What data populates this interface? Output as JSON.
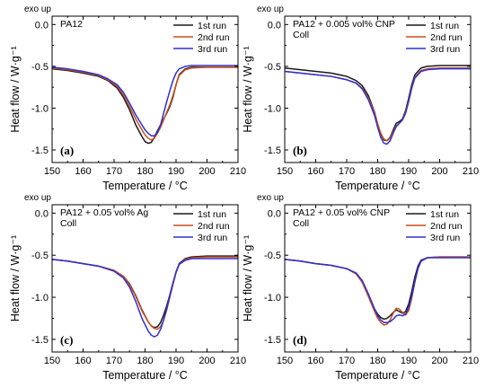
{
  "chart_data": [
    {
      "type": "line",
      "panel_label": "(a)",
      "sample": [
        "PA12"
      ],
      "corner_label": "exo up",
      "xlabel": "Temperature / °C",
      "ylabel": "Heat flow / W·g⁻¹",
      "xlim": [
        150,
        210
      ],
      "ylim": [
        -1.65,
        0.1
      ],
      "x_ticks": [
        150,
        160,
        170,
        180,
        190,
        200,
        210
      ],
      "y_ticks": [
        0.0,
        -0.5,
        -1.0,
        -1.5
      ],
      "x_tick_labels": [
        "150",
        "160",
        "170",
        "180",
        "190",
        "200",
        "210"
      ],
      "y_tick_labels": [
        "0.0",
        "-0.5",
        "-1.0",
        "-1.5"
      ],
      "legend": "top-right",
      "grid": false,
      "series": [
        {
          "name": "1st run",
          "color": "#1a1a1a",
          "x": [
            150,
            155,
            160,
            165,
            168,
            171,
            173,
            175,
            177,
            179,
            180,
            181,
            182,
            183,
            184,
            185,
            186,
            187,
            188,
            189,
            190,
            191,
            193,
            195,
            200,
            205,
            210
          ],
          "y": [
            -0.53,
            -0.55,
            -0.58,
            -0.62,
            -0.67,
            -0.76,
            -0.87,
            -1.02,
            -1.2,
            -1.34,
            -1.4,
            -1.42,
            -1.41,
            -1.35,
            -1.27,
            -1.2,
            -1.13,
            -1.06,
            -0.98,
            -0.87,
            -0.72,
            -0.6,
            -0.53,
            -0.51,
            -0.51,
            -0.51,
            -0.51
          ]
        },
        {
          "name": "2nd run",
          "color": "#c8501e",
          "x": [
            150,
            155,
            160,
            165,
            168,
            171,
            173,
            175,
            177,
            179,
            180,
            181,
            182,
            183,
            184,
            185,
            186,
            187,
            188,
            189,
            190,
            191,
            193,
            195,
            200,
            205,
            210
          ],
          "y": [
            -0.52,
            -0.54,
            -0.57,
            -0.61,
            -0.66,
            -0.74,
            -0.84,
            -0.98,
            -1.13,
            -1.26,
            -1.32,
            -1.36,
            -1.38,
            -1.36,
            -1.3,
            -1.23,
            -1.14,
            -1.05,
            -0.96,
            -0.85,
            -0.72,
            -0.61,
            -0.54,
            -0.52,
            -0.51,
            -0.51,
            -0.51
          ]
        },
        {
          "name": "3rd run",
          "color": "#3030d0",
          "x": [
            150,
            155,
            160,
            165,
            168,
            171,
            173,
            175,
            177,
            179,
            180,
            181,
            182,
            183,
            184,
            185,
            186,
            187,
            188,
            189,
            190,
            191,
            193,
            195,
            200,
            205,
            210
          ],
          "y": [
            -0.51,
            -0.53,
            -0.56,
            -0.6,
            -0.65,
            -0.72,
            -0.81,
            -0.94,
            -1.08,
            -1.2,
            -1.26,
            -1.3,
            -1.33,
            -1.33,
            -1.29,
            -1.2,
            -1.06,
            -0.92,
            -0.79,
            -0.67,
            -0.58,
            -0.53,
            -0.5,
            -0.49,
            -0.49,
            -0.49,
            -0.49
          ]
        }
      ]
    },
    {
      "type": "line",
      "panel_label": "(b)",
      "sample": [
        "PA12 + 0.005 vol% CNP",
        "Coll"
      ],
      "corner_label": "exo up",
      "xlabel": "Temperature / °C",
      "ylabel": "Heat flow / W·g⁻¹",
      "xlim": [
        150,
        210
      ],
      "ylim": [
        -1.65,
        0.1
      ],
      "x_ticks": [
        150,
        160,
        170,
        180,
        190,
        200,
        210
      ],
      "y_ticks": [
        0.0,
        -0.5,
        -1.0,
        -1.5
      ],
      "x_tick_labels": [
        "150",
        "160",
        "170",
        "180",
        "190",
        "200",
        "210"
      ],
      "y_tick_labels": [
        "0.0",
        "-0.5",
        "-1.0",
        "-1.5"
      ],
      "legend": "top-right",
      "grid": false,
      "series": [
        {
          "name": "1st run",
          "color": "#1a1a1a",
          "x": [
            150,
            155,
            160,
            165,
            170,
            173,
            175,
            177,
            179,
            180,
            181,
            182,
            183,
            184,
            185,
            186,
            187,
            188,
            189,
            190,
            191,
            192,
            194,
            196,
            200,
            205,
            210
          ],
          "y": [
            -0.52,
            -0.54,
            -0.56,
            -0.58,
            -0.62,
            -0.67,
            -0.73,
            -0.85,
            -1.05,
            -1.19,
            -1.31,
            -1.38,
            -1.39,
            -1.35,
            -1.26,
            -1.18,
            -1.16,
            -1.13,
            -1.03,
            -0.88,
            -0.72,
            -0.6,
            -0.52,
            -0.5,
            -0.49,
            -0.49,
            -0.49
          ]
        },
        {
          "name": "2nd run",
          "color": "#c8501e",
          "x": [
            150,
            155,
            160,
            165,
            170,
            173,
            175,
            177,
            179,
            180,
            181,
            182,
            183,
            184,
            185,
            186,
            187,
            188,
            189,
            190,
            191,
            192,
            194,
            196,
            200,
            205,
            210
          ],
          "y": [
            -0.56,
            -0.58,
            -0.6,
            -0.62,
            -0.66,
            -0.7,
            -0.76,
            -0.88,
            -1.06,
            -1.19,
            -1.3,
            -1.37,
            -1.39,
            -1.36,
            -1.28,
            -1.21,
            -1.18,
            -1.14,
            -1.05,
            -0.91,
            -0.75,
            -0.63,
            -0.55,
            -0.53,
            -0.52,
            -0.52,
            -0.52
          ]
        },
        {
          "name": "3rd run",
          "color": "#3030d0",
          "x": [
            150,
            155,
            160,
            165,
            170,
            173,
            175,
            177,
            179,
            180,
            181,
            182,
            183,
            184,
            185,
            186,
            187,
            188,
            189,
            190,
            191,
            192,
            194,
            196,
            200,
            205,
            210
          ],
          "y": [
            -0.56,
            -0.58,
            -0.6,
            -0.62,
            -0.66,
            -0.7,
            -0.77,
            -0.9,
            -1.09,
            -1.23,
            -1.35,
            -1.42,
            -1.43,
            -1.39,
            -1.3,
            -1.22,
            -1.18,
            -1.14,
            -1.06,
            -0.92,
            -0.76,
            -0.64,
            -0.56,
            -0.54,
            -0.53,
            -0.53,
            -0.53
          ]
        }
      ]
    },
    {
      "type": "line",
      "panel_label": "(c)",
      "sample": [
        "PA12 + 0.05 vol% Ag",
        "Coll"
      ],
      "corner_label": "exo up",
      "xlabel": "Temperature / °C",
      "ylabel": "Heat flow / W·g⁻¹",
      "xlim": [
        150,
        210
      ],
      "ylim": [
        -1.65,
        0.1
      ],
      "x_ticks": [
        150,
        160,
        170,
        180,
        190,
        200,
        210
      ],
      "y_ticks": [
        0.0,
        -0.5,
        -1.0,
        -1.5
      ],
      "x_tick_labels": [
        "150",
        "160",
        "170",
        "180",
        "190",
        "200",
        "210"
      ],
      "y_tick_labels": [
        "0.0",
        "-0.5",
        "-1.0",
        "-1.5"
      ],
      "legend": "top-right",
      "grid": false,
      "series": [
        {
          "name": "1st run",
          "color": "#1a1a1a",
          "x": [
            150,
            155,
            160,
            165,
            170,
            173,
            175,
            177,
            179,
            181,
            182,
            183,
            184,
            185,
            186,
            187,
            188,
            189,
            190,
            191,
            193,
            195,
            200,
            205,
            210
          ],
          "y": [
            -0.55,
            -0.57,
            -0.6,
            -0.63,
            -0.68,
            -0.75,
            -0.84,
            -0.98,
            -1.15,
            -1.29,
            -1.34,
            -1.36,
            -1.35,
            -1.3,
            -1.21,
            -1.1,
            -0.97,
            -0.83,
            -0.7,
            -0.6,
            -0.54,
            -0.52,
            -0.51,
            -0.51,
            -0.51
          ]
        },
        {
          "name": "2nd run",
          "color": "#c8501e",
          "x": [
            150,
            155,
            160,
            165,
            170,
            173,
            175,
            177,
            179,
            181,
            182,
            183,
            184,
            185,
            186,
            187,
            188,
            189,
            190,
            191,
            193,
            195,
            200,
            205,
            210
          ],
          "y": [
            -0.55,
            -0.57,
            -0.6,
            -0.63,
            -0.68,
            -0.75,
            -0.85,
            -0.99,
            -1.16,
            -1.29,
            -1.34,
            -1.37,
            -1.38,
            -1.35,
            -1.27,
            -1.15,
            -1.0,
            -0.85,
            -0.71,
            -0.61,
            -0.55,
            -0.53,
            -0.52,
            -0.52,
            -0.52
          ]
        },
        {
          "name": "3rd run",
          "color": "#3030d0",
          "x": [
            150,
            155,
            160,
            165,
            170,
            173,
            175,
            177,
            179,
            181,
            182,
            183,
            184,
            185,
            186,
            187,
            188,
            189,
            190,
            191,
            193,
            195,
            200,
            205,
            210
          ],
          "y": [
            -0.55,
            -0.57,
            -0.6,
            -0.63,
            -0.69,
            -0.77,
            -0.88,
            -1.05,
            -1.25,
            -1.4,
            -1.45,
            -1.47,
            -1.45,
            -1.38,
            -1.27,
            -1.13,
            -0.98,
            -0.83,
            -0.7,
            -0.61,
            -0.56,
            -0.54,
            -0.54,
            -0.54,
            -0.54
          ]
        }
      ]
    },
    {
      "type": "line",
      "panel_label": "(d)",
      "sample": [
        "PA12 + 0.05 vol% CNP",
        "Coll"
      ],
      "corner_label": "exo up",
      "xlabel": "Temperature / °C",
      "ylabel": "Heat flow / W·g⁻¹",
      "xlim": [
        150,
        210
      ],
      "ylim": [
        -1.65,
        0.1
      ],
      "x_ticks": [
        150,
        160,
        170,
        180,
        190,
        200,
        210
      ],
      "y_ticks": [
        0.0,
        -0.5,
        -1.0,
        -1.5
      ],
      "x_tick_labels": [
        "150",
        "160",
        "170",
        "180",
        "190",
        "200",
        "210"
      ],
      "y_tick_labels": [
        "0.0",
        "-0.5",
        "-1.0",
        "-1.5"
      ],
      "legend": "top-right",
      "grid": false,
      "series": [
        {
          "name": "1st run",
          "color": "#1a1a1a",
          "x": [
            150,
            155,
            160,
            165,
            170,
            173,
            175,
            177,
            179,
            180,
            181,
            182,
            183,
            184,
            185,
            186,
            187,
            188,
            189,
            190,
            191,
            192,
            193,
            194,
            196,
            200,
            205,
            210
          ],
          "y": [
            -0.55,
            -0.57,
            -0.6,
            -0.62,
            -0.66,
            -0.72,
            -0.82,
            -0.98,
            -1.14,
            -1.2,
            -1.24,
            -1.26,
            -1.25,
            -1.22,
            -1.18,
            -1.15,
            -1.17,
            -1.19,
            -1.17,
            -1.08,
            -0.93,
            -0.76,
            -0.63,
            -0.56,
            -0.53,
            -0.52,
            -0.52,
            -0.52
          ]
        },
        {
          "name": "2nd run",
          "color": "#c8501e",
          "x": [
            150,
            155,
            160,
            165,
            170,
            173,
            175,
            177,
            179,
            180,
            181,
            182,
            183,
            184,
            185,
            186,
            187,
            188,
            189,
            190,
            191,
            192,
            193,
            194,
            196,
            200,
            205,
            210
          ],
          "y": [
            -0.55,
            -0.57,
            -0.6,
            -0.62,
            -0.66,
            -0.72,
            -0.82,
            -0.99,
            -1.17,
            -1.25,
            -1.3,
            -1.33,
            -1.32,
            -1.27,
            -1.19,
            -1.13,
            -1.14,
            -1.18,
            -1.21,
            -1.16,
            -1.01,
            -0.82,
            -0.66,
            -0.57,
            -0.53,
            -0.52,
            -0.52,
            -0.52
          ]
        },
        {
          "name": "3rd run",
          "color": "#3030d0",
          "x": [
            150,
            155,
            160,
            165,
            170,
            173,
            175,
            177,
            179,
            180,
            181,
            182,
            183,
            184,
            185,
            186,
            187,
            188,
            189,
            190,
            191,
            192,
            193,
            194,
            196,
            200,
            205,
            210
          ],
          "y": [
            -0.55,
            -0.57,
            -0.6,
            -0.62,
            -0.66,
            -0.71,
            -0.8,
            -0.96,
            -1.14,
            -1.22,
            -1.27,
            -1.3,
            -1.3,
            -1.29,
            -1.26,
            -1.22,
            -1.21,
            -1.22,
            -1.2,
            -1.12,
            -0.98,
            -0.81,
            -0.66,
            -0.57,
            -0.53,
            -0.53,
            -0.53,
            -0.53
          ]
        }
      ]
    }
  ]
}
